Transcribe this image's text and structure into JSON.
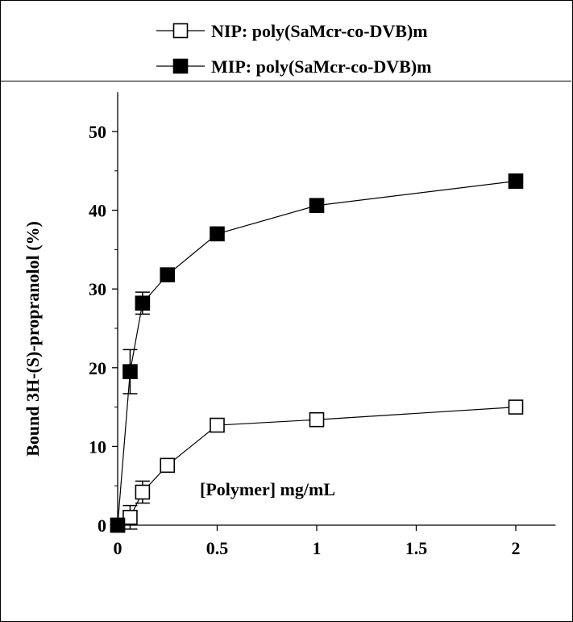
{
  "chart_data": {
    "type": "scatter",
    "xlabel": "[Polymer] mg/mL",
    "ylabel": "Bound   3H-(S)-propranolol (%)",
    "xlim": [
      0,
      2.2
    ],
    "ylim": [
      0,
      55
    ],
    "x_ticks": [
      0,
      0.5,
      1,
      1.5,
      2
    ],
    "y_ticks": [
      0,
      10,
      20,
      30,
      40,
      50
    ],
    "x_tick_labels": [
      "0",
      "0.5",
      "1",
      "1.5",
      "2"
    ],
    "y_tick_labels": [
      "0",
      "10",
      "20",
      "30",
      "40",
      "50"
    ],
    "grid": false,
    "legend_position": "top",
    "lines_connected": true,
    "series": [
      {
        "name": "NIP: poly(SaMcr-co-DVB)m",
        "marker": "open-square",
        "color": "#000000",
        "x": [
          0,
          0.0625,
          0.125,
          0.25,
          0.5,
          1,
          2
        ],
        "y": [
          0,
          1.0,
          4.2,
          7.6,
          12.7,
          13.4,
          15.0
        ],
        "error": [
          0,
          1.5,
          1.4,
          0.8,
          0.6,
          0.6,
          0.6
        ]
      },
      {
        "name": "MIP: poly(SaMcr-co-DVB)m",
        "marker": "filled-square",
        "color": "#000000",
        "x": [
          0,
          0.0625,
          0.125,
          0.25,
          0.5,
          1,
          2
        ],
        "y": [
          0,
          19.5,
          28.2,
          31.8,
          37.0,
          40.6,
          43.7
        ],
        "error": [
          0,
          2.8,
          1.4,
          0.6,
          0.5,
          0.5,
          0.9
        ]
      }
    ]
  }
}
